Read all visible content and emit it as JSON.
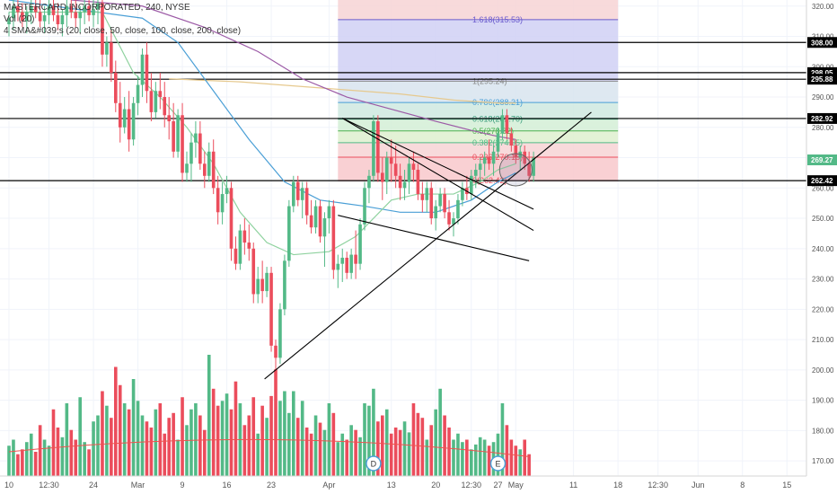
{
  "legend": {
    "title": "MASTERCARD INCORPORATED, 240, NYSE",
    "volume": "Vol (20)",
    "sma": "4 SMA&#039;s (20, close, 50, close, 100, close, 200, close)"
  },
  "chart_data": {
    "type": "candlestick",
    "title": "MASTERCARD INCORPORATED, 240, NYSE",
    "ylim": [
      165,
      322
    ],
    "y_ticks": [
      170,
      180,
      190,
      200,
      210,
      220,
      230,
      240,
      250,
      260,
      270,
      280,
      290,
      300,
      310,
      320
    ],
    "x_ticks": [
      {
        "label": "10",
        "i": 0
      },
      {
        "label": "12:30",
        "i": 9
      },
      {
        "label": "24",
        "i": 19
      },
      {
        "label": "Mar",
        "i": 29
      },
      {
        "label": "9",
        "i": 39
      },
      {
        "label": "16",
        "i": 49
      },
      {
        "label": "23",
        "i": 59
      },
      {
        "label": "Apr",
        "i": 72
      },
      {
        "label": "13",
        "i": 86
      },
      {
        "label": "20",
        "i": 96
      },
      {
        "label": "12:30",
        "i": 104
      },
      {
        "label": "27",
        "i": 110
      },
      {
        "label": "May",
        "i": 114
      },
      {
        "label": "11",
        "i": 127
      },
      {
        "label": "18",
        "i": 137
      },
      {
        "label": "12:30",
        "i": 146
      },
      {
        "label": "Jun",
        "i": 155
      },
      {
        "label": "8",
        "i": 165
      },
      {
        "label": "15",
        "i": 175
      }
    ],
    "colors": {
      "up": "#53b987",
      "down": "#eb4d5c",
      "sma20": "#8fd29f",
      "sma50": "#4a9fd6",
      "sma100": "#9c5aa6",
      "sma200": "#e6c98e"
    },
    "candles": [
      [
        314,
        318,
        310,
        316
      ],
      [
        316,
        322,
        312,
        320
      ],
      [
        320,
        322,
        315,
        318
      ],
      [
        318,
        321,
        313,
        315
      ],
      [
        315,
        320,
        311,
        318
      ],
      [
        318,
        322,
        314,
        320
      ],
      [
        320,
        322,
        316,
        318
      ],
      [
        318,
        322,
        313,
        315
      ],
      [
        315,
        320,
        311,
        317
      ],
      [
        317,
        322,
        314,
        320
      ],
      [
        320,
        322,
        315,
        317
      ],
      [
        317,
        321,
        312,
        314
      ],
      [
        314,
        319,
        310,
        317
      ],
      [
        317,
        322,
        313,
        320
      ],
      [
        320,
        322,
        316,
        318
      ],
      [
        318,
        322,
        313,
        316
      ],
      [
        316,
        320,
        311,
        318
      ],
      [
        318,
        322,
        314,
        320
      ],
      [
        320,
        322,
        315,
        317
      ],
      [
        317,
        322,
        313,
        319
      ],
      [
        319,
        322,
        314,
        321
      ],
      [
        321,
        322,
        300,
        304
      ],
      [
        304,
        310,
        300,
        308
      ],
      [
        308,
        312,
        295,
        298
      ],
      [
        298,
        302,
        285,
        288
      ],
      [
        288,
        295,
        275,
        280
      ],
      [
        280,
        290,
        278,
        286
      ],
      [
        286,
        292,
        272,
        276
      ],
      [
        276,
        290,
        274,
        288
      ],
      [
        288,
        297,
        284,
        294
      ],
      [
        294,
        306,
        290,
        304
      ],
      [
        304,
        308,
        288,
        292
      ],
      [
        292,
        298,
        282,
        285
      ],
      [
        285,
        295,
        283,
        292
      ],
      [
        292,
        298,
        286,
        290
      ],
      [
        290,
        295,
        280,
        284
      ],
      [
        284,
        290,
        276,
        282
      ],
      [
        282,
        288,
        270,
        272
      ],
      [
        272,
        286,
        270,
        284
      ],
      [
        284,
        288,
        262,
        265
      ],
      [
        265,
        272,
        262,
        268
      ],
      [
        268,
        278,
        262,
        275
      ],
      [
        275,
        282,
        270,
        278
      ],
      [
        278,
        282,
        266,
        268
      ],
      [
        268,
        272,
        260,
        264
      ],
      [
        264,
        275,
        262,
        272
      ],
      [
        272,
        276,
        258,
        260
      ],
      [
        260,
        264,
        248,
        252
      ],
      [
        252,
        262,
        248,
        258
      ],
      [
        258,
        264,
        255,
        260
      ],
      [
        260,
        262,
        236,
        240
      ],
      [
        240,
        244,
        233,
        235
      ],
      [
        235,
        248,
        233,
        246
      ],
      [
        246,
        250,
        238,
        242
      ],
      [
        242,
        248,
        236,
        240
      ],
      [
        240,
        242,
        222,
        225
      ],
      [
        225,
        234,
        222,
        230
      ],
      [
        230,
        236,
        222,
        226
      ],
      [
        226,
        234,
        224,
        232
      ],
      [
        232,
        234,
        206,
        208
      ],
      [
        208,
        210,
        200,
        204
      ],
      [
        204,
        222,
        202,
        220
      ],
      [
        220,
        238,
        218,
        236
      ],
      [
        236,
        256,
        234,
        254
      ],
      [
        254,
        264,
        252,
        262
      ],
      [
        262,
        264,
        254,
        256
      ],
      [
        256,
        262,
        250,
        260
      ],
      [
        260,
        262,
        248,
        251
      ],
      [
        251,
        256,
        245,
        247
      ],
      [
        247,
        256,
        245,
        254
      ],
      [
        254,
        256,
        242,
        244
      ],
      [
        244,
        252,
        234,
        250
      ],
      [
        250,
        256,
        245,
        254
      ],
      [
        254,
        256,
        230,
        233
      ],
      [
        233,
        238,
        227,
        235
      ],
      [
        235,
        240,
        229,
        237
      ],
      [
        237,
        239,
        230,
        232
      ],
      [
        232,
        240,
        230,
        238
      ],
      [
        238,
        246,
        230,
        235
      ],
      [
        235,
        250,
        233,
        248
      ],
      [
        248,
        262,
        246,
        260
      ],
      [
        260,
        266,
        255,
        264
      ],
      [
        264,
        284,
        262,
        282
      ],
      [
        282,
        284,
        262,
        265
      ],
      [
        265,
        270,
        256,
        262
      ],
      [
        262,
        272,
        258,
        270
      ],
      [
        270,
        276,
        262,
        268
      ],
      [
        268,
        274,
        260,
        264
      ],
      [
        264,
        268,
        256,
        260
      ],
      [
        260,
        266,
        256,
        262
      ],
      [
        262,
        270,
        258,
        268
      ],
      [
        268,
        272,
        262,
        266
      ],
      [
        266,
        268,
        256,
        258
      ],
      [
        258,
        262,
        252,
        256
      ],
      [
        256,
        262,
        252,
        260
      ],
      [
        260,
        262,
        248,
        250
      ],
      [
        250,
        256,
        246,
        254
      ],
      [
        254,
        260,
        252,
        258
      ],
      [
        258,
        260,
        250,
        252
      ],
      [
        252,
        256,
        246,
        248
      ],
      [
        248,
        252,
        244,
        250
      ],
      [
        250,
        258,
        248,
        256
      ],
      [
        256,
        262,
        254,
        260
      ],
      [
        260,
        264,
        256,
        258
      ],
      [
        258,
        266,
        256,
        264
      ],
      [
        264,
        268,
        260,
        266
      ],
      [
        266,
        270,
        262,
        268
      ],
      [
        268,
        272,
        264,
        270
      ],
      [
        270,
        276,
        266,
        268
      ],
      [
        268,
        274,
        264,
        272
      ],
      [
        272,
        280,
        270,
        278
      ],
      [
        278,
        286,
        276,
        284
      ],
      [
        284,
        286,
        276,
        278
      ],
      [
        278,
        280,
        272,
        274
      ],
      [
        274,
        276,
        268,
        270
      ],
      [
        270,
        274,
        266,
        272
      ],
      [
        272,
        274,
        266,
        268
      ],
      [
        268,
        272,
        262,
        264
      ],
      [
        264,
        272,
        262,
        270
      ]
    ],
    "volume": {
      "ylim": [
        0,
        1
      ],
      "values": [
        0.25,
        0.3,
        0.18,
        0.22,
        0.28,
        0.35,
        0.2,
        0.42,
        0.3,
        0.25,
        0.55,
        0.4,
        0.32,
        0.6,
        0.38,
        0.3,
        0.65,
        0.28,
        0.22,
        0.45,
        0.5,
        0.7,
        0.58,
        0.48,
        0.9,
        0.75,
        0.6,
        0.55,
        0.8,
        0.62,
        0.5,
        0.45,
        0.4,
        0.55,
        0.6,
        0.35,
        0.48,
        0.52,
        0.3,
        0.65,
        0.42,
        0.55,
        0.6,
        0.5,
        0.38,
        1.0,
        0.72,
        0.58,
        0.62,
        0.68,
        0.55,
        0.78,
        0.6,
        0.42,
        0.5,
        0.65,
        0.35,
        0.58,
        0.48,
        0.66,
        0.88,
        0.62,
        0.7,
        0.52,
        0.7,
        0.48,
        0.62,
        0.4,
        0.35,
        0.5,
        0.44,
        0.38,
        0.6,
        0.52,
        0.28,
        0.35,
        0.3,
        0.42,
        0.38,
        0.32,
        0.6,
        0.58,
        0.72,
        0.45,
        0.5,
        0.55,
        0.35,
        0.4,
        0.38,
        0.45,
        0.36,
        0.6,
        0.52,
        0.48,
        0.3,
        0.42,
        0.55,
        0.72,
        0.5,
        0.4,
        0.3,
        0.35,
        0.28,
        0.3,
        0.22,
        0.26,
        0.32,
        0.3,
        0.25,
        0.28,
        0.35,
        0.6,
        0.42,
        0.3,
        0.25,
        0.22,
        0.3,
        0.18
      ],
      "ma_start": 0.2,
      "ma_end": 0.16
    },
    "sma20": [
      [
        0,
        318
      ],
      [
        21,
        318
      ],
      [
        28,
        298
      ],
      [
        34,
        290
      ],
      [
        40,
        280
      ],
      [
        46,
        268
      ],
      [
        52,
        252
      ],
      [
        58,
        242
      ],
      [
        64,
        238
      ],
      [
        72,
        239
      ],
      [
        78,
        244
      ],
      [
        86,
        256
      ],
      [
        92,
        258
      ],
      [
        100,
        258
      ],
      [
        106,
        262
      ],
      [
        110,
        266
      ],
      [
        114,
        268
      ]
    ],
    "sma50": [
      [
        0,
        322
      ],
      [
        30,
        316
      ],
      [
        38,
        308
      ],
      [
        46,
        292
      ],
      [
        54,
        276
      ],
      [
        62,
        262
      ],
      [
        70,
        256
      ],
      [
        80,
        254
      ],
      [
        88,
        252
      ],
      [
        96,
        252
      ],
      [
        104,
        256
      ],
      [
        110,
        262
      ],
      [
        114,
        265
      ]
    ],
    "sma100": [
      [
        14,
        322
      ],
      [
        30,
        320
      ],
      [
        44,
        313
      ],
      [
        56,
        305
      ],
      [
        66,
        296
      ],
      [
        76,
        290
      ],
      [
        86,
        286
      ],
      [
        96,
        282
      ],
      [
        104,
        279
      ],
      [
        110,
        277
      ],
      [
        114,
        276
      ]
    ],
    "sma200": [
      [
        36,
        296
      ],
      [
        52,
        295
      ],
      [
        70,
        293
      ],
      [
        88,
        291
      ],
      [
        100,
        289
      ],
      [
        110,
        288
      ],
      [
        114,
        288
      ]
    ],
    "fib": {
      "from_i": 74,
      "to_i": 137,
      "levels": [
        {
          "ratio": 0,
          "label": "0(262.42)",
          "price": 262.42,
          "fill": "#f8c8cb"
        },
        {
          "ratio": 0.236,
          "label": "0.236(270.15)",
          "price": 270.15,
          "fill": "#f7d3d5"
        },
        {
          "ratio": 0.382,
          "label": "0.382(274.95)",
          "price": 274.95,
          "fill": "#def0cf"
        },
        {
          "ratio": 0.5,
          "label": "0.5(278.82)",
          "price": 278.82,
          "fill": "#d4efd6"
        },
        {
          "ratio": 0.618,
          "label": "0.618(282.70)",
          "price": 282.7,
          "fill": "#cfe9e1"
        },
        {
          "ratio": 0.786,
          "label": "0.786(288.21)",
          "price": 288.21,
          "fill": "#d8e4ee"
        },
        {
          "ratio": 1,
          "label": "1(295.24)",
          "price": 295.24,
          "fill": "#d0d0f5"
        },
        {
          "ratio": 1.618,
          "label": "1.618(315.53)",
          "price": 315.53,
          "fill": "#f7d3d5"
        }
      ],
      "top_price": 322
    },
    "horizontal_levels": [
      308.0,
      298.05,
      295.88,
      282.92,
      262.42
    ],
    "price_labels": [
      {
        "price": 320.0,
        "text": "320.00",
        "style": "tick"
      },
      {
        "price": 308.0,
        "text": "308.00",
        "style": "black"
      },
      {
        "price": 298.05,
        "text": "298.05",
        "style": "black"
      },
      {
        "price": 295.88,
        "text": "295.88",
        "style": "black"
      },
      {
        "price": 282.92,
        "text": "282.92",
        "style": "black"
      },
      {
        "price": 269.27,
        "text": "269.27",
        "style": "green"
      },
      {
        "price": 262.42,
        "text": "262.42",
        "style": "black"
      }
    ],
    "trendlines": [
      {
        "from": [
          57.5,
          197
        ],
        "to": [
          131,
          285
        ]
      },
      {
        "from": [
          75,
          283
        ],
        "to": [
          118,
          253
        ]
      },
      {
        "from": [
          74,
          251
        ],
        "to": [
          117,
          236
        ]
      },
      {
        "from": [
          75,
          283
        ],
        "to": [
          118,
          246
        ]
      }
    ],
    "events": [
      {
        "i": 82,
        "label": "D"
      },
      {
        "i": 110,
        "label": "E"
      }
    ],
    "highlight_circle": {
      "i": 114,
      "price": 266
    }
  }
}
